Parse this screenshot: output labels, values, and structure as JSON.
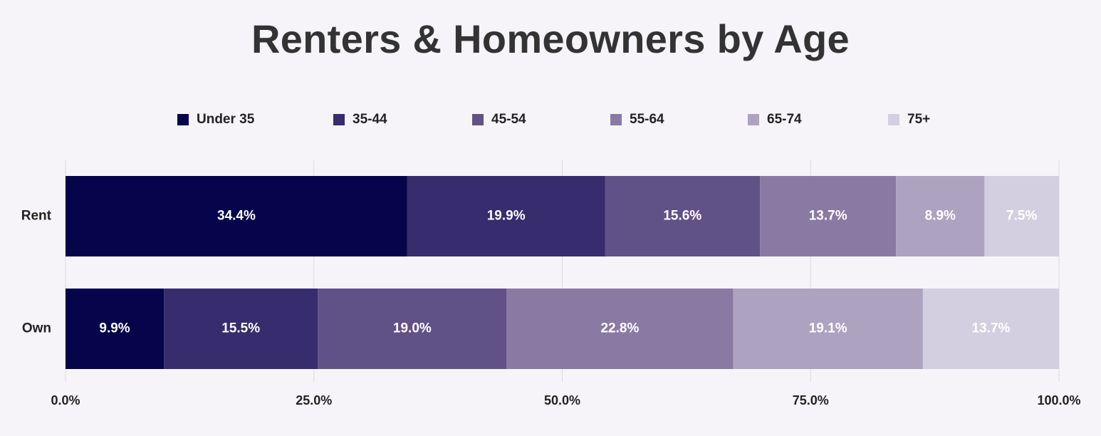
{
  "chart_data": {
    "type": "bar",
    "orientation": "horizontal",
    "stacked": true,
    "title": "Renters & Homeowners by Age",
    "categories": [
      "Rent",
      "Own"
    ],
    "series": [
      {
        "name": "Under 35",
        "color": "#06044a",
        "values": [
          34.4,
          9.9
        ],
        "labels": [
          "34.4%",
          "9.9%"
        ]
      },
      {
        "name": "35-44",
        "color": "#372c6d",
        "values": [
          19.9,
          15.5
        ],
        "labels": [
          "19.9%",
          "15.5%"
        ]
      },
      {
        "name": "45-54",
        "color": "#605286",
        "values": [
          15.6,
          19.0
        ],
        "labels": [
          "15.6%",
          "19.0%"
        ]
      },
      {
        "name": "55-64",
        "color": "#897aa4",
        "values": [
          13.7,
          22.8
        ],
        "labels": [
          "13.7%",
          "22.8%"
        ]
      },
      {
        "name": "65-74",
        "color": "#ada3c0",
        "values": [
          8.9,
          19.1
        ],
        "labels": [
          "8.9%",
          "19.1%"
        ]
      },
      {
        "name": "75+",
        "color": "#d4cfe0",
        "values": [
          7.5,
          13.7
        ],
        "labels": [
          "7.5%",
          "13.7%"
        ]
      }
    ],
    "xlim": [
      0,
      100
    ],
    "xticks": [
      0,
      25,
      50,
      75,
      100
    ],
    "xtick_labels": [
      "0.0%",
      "25.0%",
      "50.0%",
      "75.0%",
      "100.0%"
    ],
    "grid": true,
    "legend_position": "top"
  }
}
